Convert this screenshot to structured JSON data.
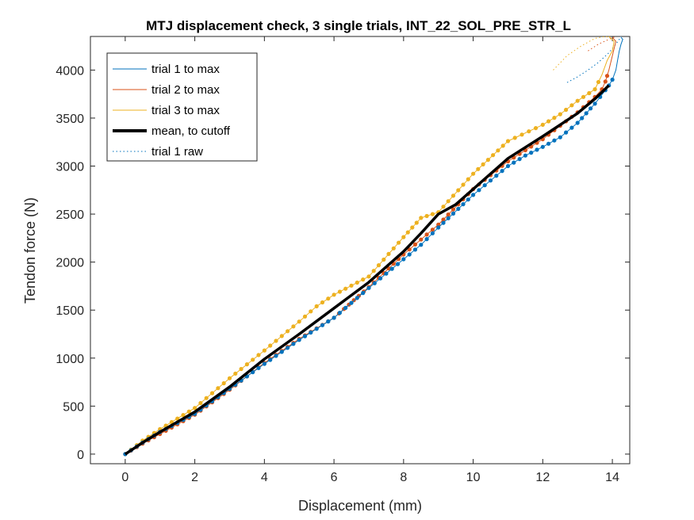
{
  "chart_data": {
    "type": "line",
    "title": "MTJ displacement check, 3 single trials, INT_22_SOL_PRE_STR_L",
    "xlabel": "Displacement (mm)",
    "ylabel": "Tendon force (N)",
    "xlim": [
      -1,
      14.5
    ],
    "ylim": [
      -100,
      4350
    ],
    "xticks": [
      0,
      2,
      4,
      6,
      8,
      10,
      12,
      14
    ],
    "yticks": [
      0,
      500,
      1000,
      1500,
      2000,
      2500,
      3000,
      3500,
      4000
    ],
    "grid": false,
    "legend_position": "top-left",
    "legend": [
      "trial 1 to max",
      "trial 2 to max",
      "trial 3 to max",
      "mean, to cutoff",
      "trial 1 raw"
    ],
    "series": [
      {
        "name": "trial 1 to max",
        "color": "#0072BD",
        "line": "solid",
        "markers": true,
        "x": [
          0,
          0.5,
          1,
          2,
          3,
          4,
          5,
          6,
          7,
          8,
          8.5,
          9,
          10,
          11,
          11.5,
          12,
          12.5,
          13,
          13.5,
          13.8,
          13.9,
          14.0,
          14.1,
          14.15,
          14.2,
          14.25,
          14.3,
          14.25
        ],
        "y": [
          0,
          120,
          230,
          420,
          680,
          940,
          1190,
          1420,
          1730,
          2030,
          2180,
          2360,
          2700,
          3000,
          3110,
          3200,
          3300,
          3450,
          3650,
          3790,
          3840,
          3900,
          4000,
          4100,
          4200,
          4270,
          4320,
          4340
        ]
      },
      {
        "name": "trial 2 to max",
        "color": "#D95319",
        "line": "solid",
        "markers": true,
        "x": [
          0,
          0.5,
          1,
          2,
          3,
          4,
          5,
          6,
          7,
          8,
          9,
          10,
          11,
          12,
          13,
          13.5,
          13.7,
          13.8,
          13.9,
          14.0,
          14.1,
          14.0
        ],
        "y": [
          0,
          110,
          210,
          410,
          670,
          950,
          1200,
          1420,
          1740,
          2080,
          2390,
          2760,
          3050,
          3280,
          3560,
          3720,
          3800,
          3880,
          4000,
          4150,
          4300,
          4340
        ]
      },
      {
        "name": "trial 3 to max",
        "color": "#EDB120",
        "line": "solid",
        "markers": true,
        "x": [
          0,
          0.5,
          1,
          2,
          3,
          4,
          5,
          5.5,
          6,
          7,
          8,
          8.5,
          9,
          10,
          11,
          12,
          12.5,
          13,
          13.5,
          13.7,
          13.85,
          14.0,
          14.05,
          13.9
        ],
        "y": [
          0,
          140,
          260,
          480,
          790,
          1080,
          1380,
          1540,
          1660,
          1850,
          2260,
          2460,
          2520,
          2920,
          3260,
          3430,
          3540,
          3680,
          3800,
          3950,
          4100,
          4200,
          4300,
          4350
        ]
      },
      {
        "name": "mean, to cutoff",
        "color": "#000000",
        "line": "solid",
        "markers": false,
        "x": [
          0,
          0.5,
          1,
          2,
          3,
          4,
          5,
          6,
          7,
          8,
          8.5,
          9,
          9.5,
          10,
          11,
          12,
          13,
          13.5,
          13.9
        ],
        "y": [
          0,
          120,
          230,
          440,
          700,
          990,
          1250,
          1520,
          1790,
          2110,
          2300,
          2500,
          2600,
          2760,
          3080,
          3310,
          3550,
          3700,
          3840
        ]
      },
      {
        "name": "trial 1 raw",
        "color": "#0072BD",
        "line": "dotted",
        "markers": false,
        "x": [
          12.7,
          13.0,
          13.3,
          13.6,
          13.9,
          14.1,
          14.2,
          14.25
        ],
        "y": [
          3870,
          3930,
          4000,
          4080,
          4180,
          4270,
          4320,
          4350
        ]
      },
      {
        "name": "",
        "color": "#EDB120",
        "line": "dotted",
        "markers": false,
        "x": [
          12.3,
          12.7,
          13.1,
          13.5,
          13.8,
          14.0
        ],
        "y": [
          4000,
          4150,
          4250,
          4330,
          4350,
          4330
        ]
      },
      {
        "name": "",
        "color": "#D95319",
        "line": "dotted",
        "markers": false,
        "x": [
          13.3,
          13.6,
          13.9,
          14.1
        ],
        "y": [
          4200,
          4270,
          4320,
          4350
        ]
      }
    ]
  }
}
